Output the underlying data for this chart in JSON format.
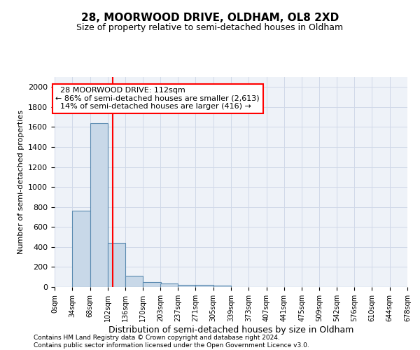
{
  "title1": "28, MOORWOOD DRIVE, OLDHAM, OL8 2XD",
  "title2": "Size of property relative to semi-detached houses in Oldham",
  "xlabel": "Distribution of semi-detached houses by size in Oldham",
  "ylabel": "Number of semi-detached properties",
  "footer": "Contains HM Land Registry data © Crown copyright and database right 2024.\nContains public sector information licensed under the Open Government Licence v3.0.",
  "bar_left_edges": [
    0,
    34,
    68,
    102,
    136,
    170,
    203,
    237,
    271,
    305,
    339,
    373,
    407,
    441,
    475,
    509,
    542,
    576,
    610,
    644
  ],
  "bar_heights": [
    0,
    760,
    1640,
    440,
    110,
    50,
    33,
    22,
    18,
    15,
    0,
    0,
    0,
    0,
    0,
    0,
    0,
    0,
    0,
    0
  ],
  "bin_width": 34,
  "bar_color": "#c8d8e8",
  "bar_edge_color": "#5a8ab0",
  "tick_labels": [
    "0sqm",
    "34sqm",
    "68sqm",
    "102sqm",
    "136sqm",
    "170sqm",
    "203sqm",
    "237sqm",
    "271sqm",
    "305sqm",
    "339sqm",
    "373sqm",
    "407sqm",
    "441sqm",
    "475sqm",
    "509sqm",
    "542sqm",
    "576sqm",
    "610sqm",
    "644sqm",
    "678sqm"
  ],
  "ylim": [
    0,
    2100
  ],
  "yticks": [
    0,
    200,
    400,
    600,
    800,
    1000,
    1200,
    1400,
    1600,
    1800,
    2000
  ],
  "property_size": 112,
  "property_label": "28 MOORWOOD DRIVE: 112sqm",
  "pct_smaller": 86,
  "count_smaller": 2613,
  "pct_larger": 14,
  "count_larger": 416,
  "vline_x": 112,
  "grid_color": "#d0d8e8",
  "background_color": "#eef2f8",
  "annotation_fontsize": 8,
  "title1_fontsize": 11,
  "title2_fontsize": 9,
  "ylabel_fontsize": 8,
  "xlabel_fontsize": 9,
  "footer_fontsize": 6.5
}
